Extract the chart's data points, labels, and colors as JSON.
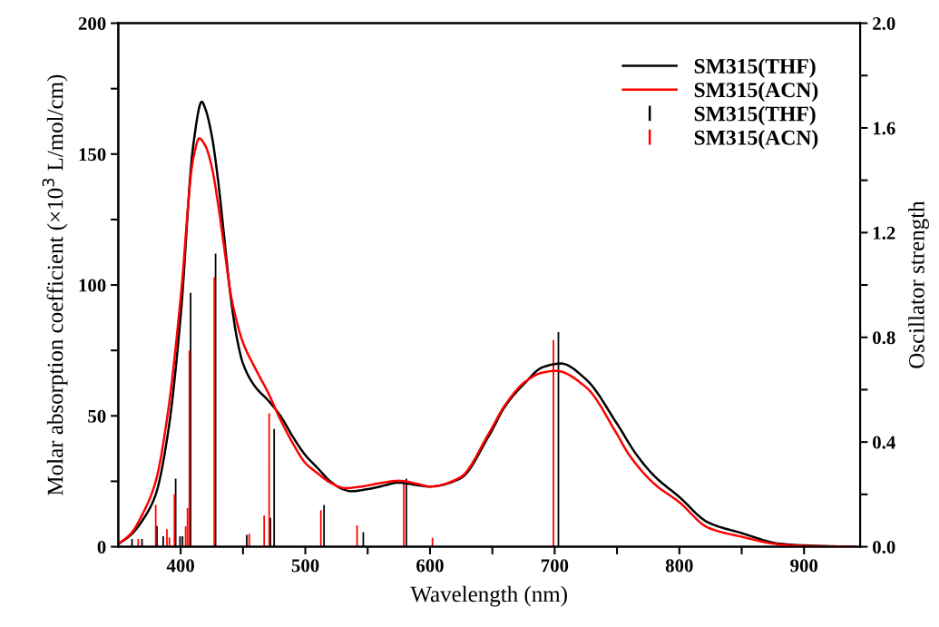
{
  "chart_data": {
    "type": "line",
    "xlabel": "Wavelength (nm)",
    "ylabel": "Molar absorption coefficient (×10$^{3}$ L/mol/cm)",
    "y2label": "Oscillator strength",
    "xlim": [
      350,
      945
    ],
    "xticks": [
      400,
      {
        "value": 450,
        "label": null
      },
      500,
      {
        "value": 550,
        "label": null
      },
      600,
      {
        "value": 650,
        "label": null
      },
      700,
      {
        "value": 750,
        "label": null
      },
      800,
      {
        "value": 850,
        "label": null
      },
      900
    ],
    "ylim": [
      0,
      200
    ],
    "yticks": [
      0,
      {
        "value": 25,
        "label": null
      },
      50,
      {
        "value": 75,
        "label": null
      },
      100,
      {
        "value": 125,
        "label": null
      },
      150,
      {
        "value": 175,
        "label": null
      },
      200
    ],
    "y2lim": [
      0,
      2.0
    ],
    "y2ticks": [
      {
        "value": 0,
        "label": "0.0"
      },
      {
        "value": 0.2,
        "label": null
      },
      0.4,
      {
        "value": 0.6,
        "label": null
      },
      0.8,
      {
        "value": 1.0,
        "label": null
      },
      1.2,
      {
        "value": 1.4,
        "label": null
      },
      1.6,
      {
        "value": 1.8,
        "label": null
      },
      {
        "value": 2,
        "label": "2.0"
      }
    ],
    "legend": "top right",
    "grid": false,
    "series": [
      {
        "name": "SM315(THF)",
        "color": "#000000",
        "x": [
          350,
          360,
          370,
          380,
          390,
          400,
          410,
          417,
          420,
          425,
          430,
          435,
          440,
          445,
          450,
          460,
          470,
          480,
          490,
          500,
          510,
          520,
          530,
          537,
          550,
          560,
          575,
          590,
          600,
          624,
          648,
          660,
          677,
          690,
          705,
          725,
          750,
          765,
          780,
          800,
          823,
          850,
          880,
          900,
          940
        ],
        "values": [
          1,
          4.5,
          10.5,
          20,
          44,
          88,
          153,
          170,
          167,
          157,
          140,
          118,
          96,
          80,
          70,
          61,
          56,
          50,
          42,
          35,
          30,
          25,
          22,
          21.2,
          22,
          23,
          24.5,
          23.5,
          23,
          26,
          43,
          53.5,
          63,
          68.5,
          70,
          64,
          47,
          35.6,
          27,
          19,
          9.3,
          5.2,
          1.2,
          0.5,
          0
        ]
      },
      {
        "name": "SM315(ACN)",
        "color": "#ff0000",
        "x": [
          350,
          360,
          370,
          380,
          390,
          400,
          410,
          415,
          420,
          425,
          430,
          435,
          440,
          445,
          450,
          460,
          470,
          480,
          490,
          500,
          510,
          520,
          532,
          545,
          560,
          575,
          590,
          600,
          624,
          648,
          660,
          677,
          690,
          701,
          725,
          750,
          759,
          780,
          800,
          823,
          850,
          880,
          900,
          940
        ],
        "values": [
          1,
          5,
          13,
          25,
          52,
          95,
          148,
          156,
          153,
          145,
          131,
          114,
          97,
          86,
          78,
          68,
          59,
          48.6,
          39.5,
          32,
          28,
          24.5,
          22.4,
          23,
          24.3,
          25.2,
          24,
          23,
          26.4,
          44,
          54,
          63.3,
          66.5,
          67.2,
          61,
          43,
          35.6,
          24,
          17,
          7.3,
          3.8,
          0.9,
          0.3,
          0
        ]
      },
      {
        "name": "SM315(THF)",
        "type": "bar",
        "axis": "y2",
        "color": "#000000",
        "x": [
          361,
          369,
          381,
          386,
          396,
          399.5,
          401.5,
          408,
          428,
          453,
          472,
          475,
          515,
          546.5,
          581,
          703
        ],
        "values": [
          0.03,
          0.03,
          0.08,
          0.04,
          0.26,
          0.04,
          0.04,
          0.97,
          1.12,
          0.045,
          0.11,
          0.45,
          0.16,
          0.056,
          0.26,
          0.82
        ]
      },
      {
        "name": "SM315(ACN)",
        "type": "bar",
        "axis": "y2",
        "color": "#ff0000",
        "x": [
          366,
          380,
          389,
          391,
          395,
          404,
          405.5,
          407,
          427,
          455,
          467,
          471,
          512.5,
          541.5,
          579,
          602,
          699
        ],
        "values": [
          0.03,
          0.16,
          0.067,
          0.035,
          0.2,
          0.078,
          0.148,
          0.75,
          1.03,
          0.05,
          0.12,
          0.51,
          0.14,
          0.082,
          0.24,
          0.034,
          0.79
        ]
      }
    ]
  }
}
